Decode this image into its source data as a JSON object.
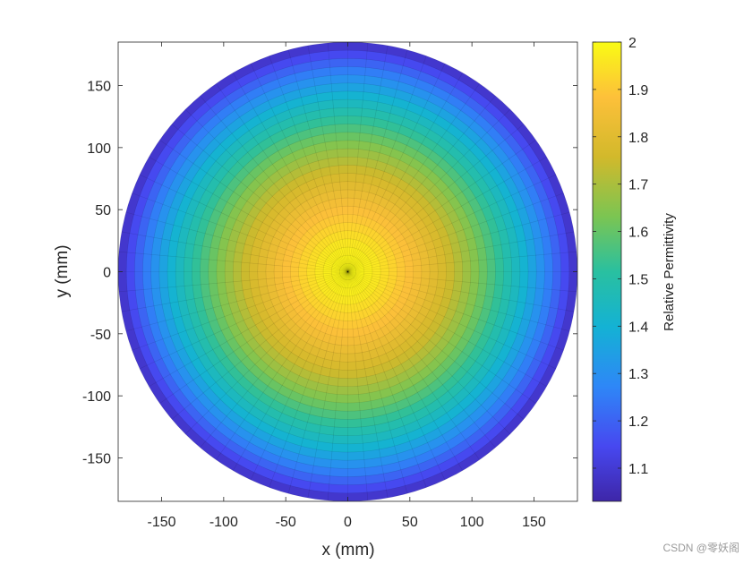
{
  "chart_data": {
    "type": "heatmap",
    "title": "",
    "xlabel": "x (mm)",
    "ylabel": "y (mm)",
    "xlim": [
      -185,
      185
    ],
    "ylim": [
      -185,
      185
    ],
    "xticks": [
      -150,
      -100,
      -50,
      0,
      50,
      100,
      150
    ],
    "yticks": [
      150,
      100,
      50,
      0,
      -50,
      -100,
      -150
    ],
    "radius": 185,
    "grid": false,
    "colormap": "parula",
    "colorbar": {
      "label": "Relative Permittivity",
      "lim": [
        1.03,
        2.0
      ],
      "ticks": [
        2,
        1.9,
        1.8,
        1.7,
        1.6,
        1.5,
        1.4,
        1.3,
        1.2,
        1.1
      ],
      "position": "right"
    },
    "profile": {
      "r": [
        0,
        20,
        40,
        60,
        80,
        100,
        120,
        140,
        160,
        175,
        185
      ],
      "value": [
        2.0,
        1.97,
        1.91,
        1.84,
        1.76,
        1.66,
        1.54,
        1.42,
        1.27,
        1.15,
        1.06
      ]
    }
  },
  "watermark": "CSDN @零妖阁"
}
